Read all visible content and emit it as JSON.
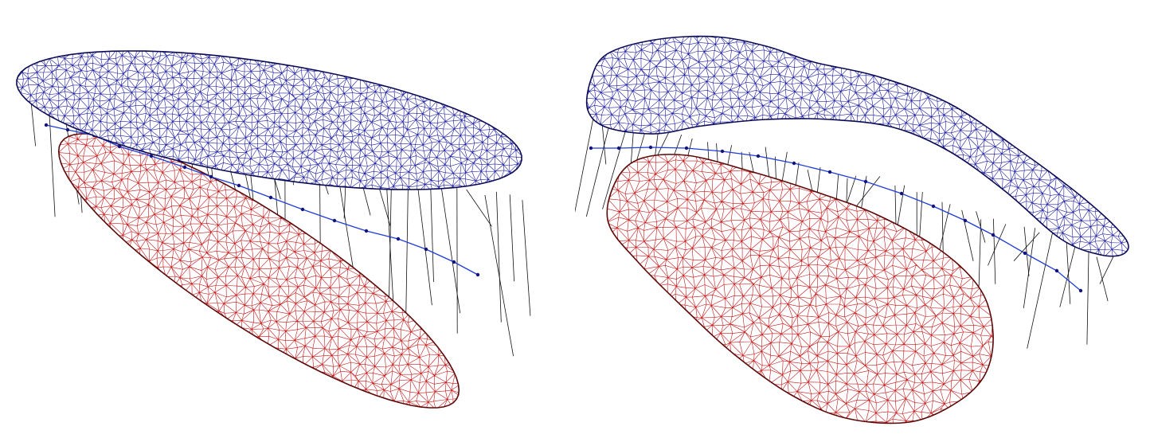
{
  "figure": {
    "panels": [
      {
        "id": "left",
        "description_shape": "ellipsoid-pair",
        "upper_mesh_color": "#1a1aa0",
        "lower_mesh_color": "#c41414",
        "connector_color": "#111111",
        "medial_path_color": "#1f3bd8"
      },
      {
        "id": "right",
        "description_shape": "organ-pair",
        "upper_mesh_color": "#1a1aa0",
        "lower_mesh_color": "#c41414",
        "connector_color": "#111111",
        "medial_path_color": "#1f3bd8"
      }
    ]
  }
}
